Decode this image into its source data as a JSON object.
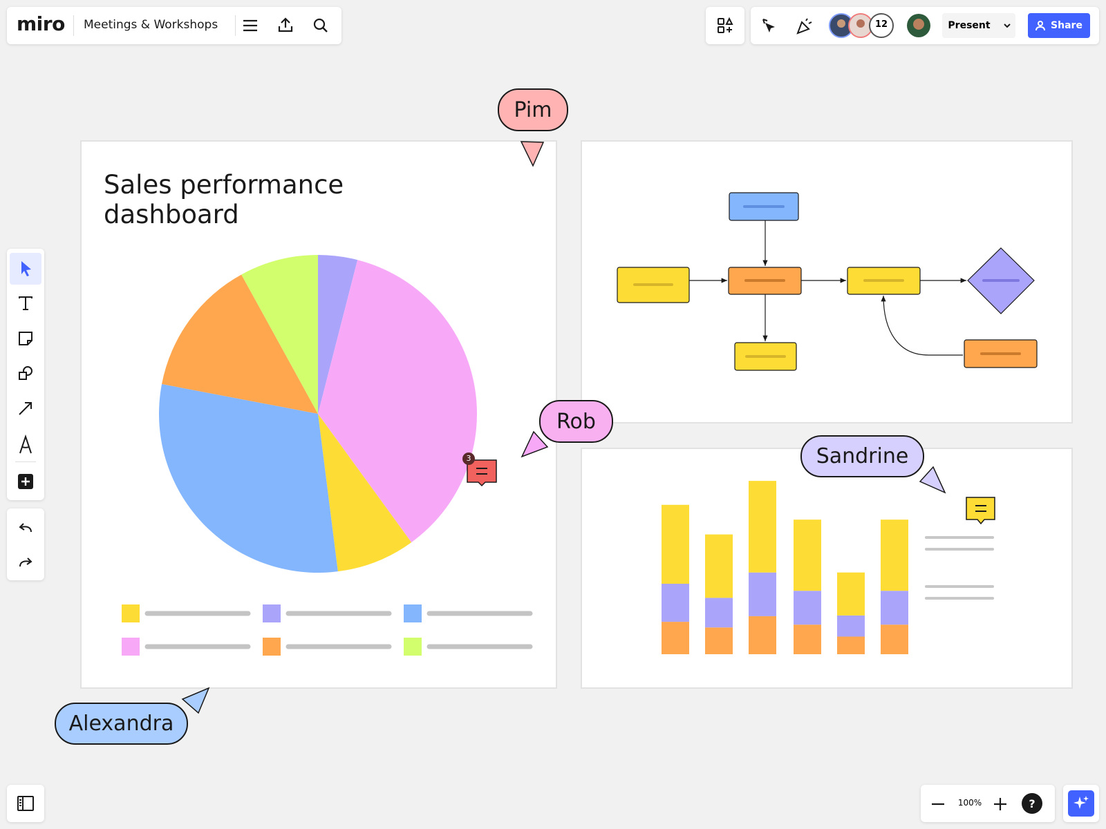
{
  "toolbar": {
    "logo": "miro",
    "board_name": "Meetings & Workshops",
    "collaborator_count": "12",
    "present": "Present",
    "share": "Share"
  },
  "cursors": [
    {
      "name": "Pim"
    },
    {
      "name": "Rob"
    },
    {
      "name": "Sandrine"
    },
    {
      "name": "Alexandra"
    }
  ],
  "comment_count": "3",
  "zoom": "100%",
  "help": "?",
  "chart_data": [
    {
      "type": "pie",
      "title": "Sales performance dashboard",
      "values": [
        4,
        36,
        8,
        30,
        14,
        8
      ],
      "colors": [
        "#aaa4fb",
        "#f7a9f8",
        "#fddd35",
        "#84b6fd",
        "#ffa74f",
        "#d2fd6c"
      ]
    },
    {
      "type": "bar",
      "stacked": true,
      "categories": [
        null,
        null,
        null,
        null,
        null,
        null
      ],
      "series": [
        {
          "color": "#ffa74f",
          "values": [
            46,
            38,
            54,
            42,
            25,
            42
          ]
        },
        {
          "color": "#aaa4fb",
          "values": [
            54,
            42,
            62,
            48,
            30,
            48
          ]
        },
        {
          "color": "#fddd35",
          "values": [
            112,
            90,
            130,
            101,
            61,
            101
          ]
        }
      ]
    }
  ]
}
